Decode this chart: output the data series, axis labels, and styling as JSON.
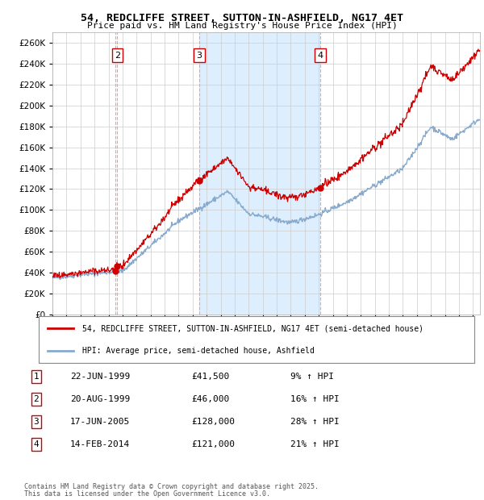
{
  "title": "54, REDCLIFFE STREET, SUTTON-IN-ASHFIELD, NG17 4ET",
  "subtitle": "Price paid vs. HM Land Registry's House Price Index (HPI)",
  "ylim": [
    0,
    270000
  ],
  "yticks": [
    0,
    20000,
    40000,
    60000,
    80000,
    100000,
    120000,
    140000,
    160000,
    180000,
    200000,
    220000,
    240000,
    260000
  ],
  "xlim_start": 1995.0,
  "xlim_end": 2025.5,
  "sale_dates_num": [
    1999.47,
    1999.63,
    2005.46,
    2014.12
  ],
  "sale_prices": [
    41500,
    46000,
    128000,
    121000
  ],
  "sale_labels": [
    "1",
    "2",
    "3",
    "4"
  ],
  "sale_info": [
    {
      "num": "1",
      "date": "22-JUN-1999",
      "price": "£41,500",
      "pct": "9% ↑ HPI"
    },
    {
      "num": "2",
      "date": "20-AUG-1999",
      "price": "£46,000",
      "pct": "16% ↑ HPI"
    },
    {
      "num": "3",
      "date": "17-JUN-2005",
      "price": "£128,000",
      "pct": "28% ↑ HPI"
    },
    {
      "num": "4",
      "date": "14-FEB-2014",
      "price": "£121,000",
      "pct": "21% ↑ HPI"
    }
  ],
  "legend_line1": "54, REDCLIFFE STREET, SUTTON-IN-ASHFIELD, NG17 4ET (semi-detached house)",
  "legend_line2": "HPI: Average price, semi-detached house, Ashfield",
  "footer1": "Contains HM Land Registry data © Crown copyright and database right 2025.",
  "footer2": "This data is licensed under the Open Government Licence v3.0.",
  "price_line_color": "#cc0000",
  "hpi_line_color": "#88aacc",
  "background_color": "#ffffff",
  "plot_bg_color": "#ffffff",
  "shade_color": "#ddeeff",
  "grid_color": "#cccccc",
  "vline_color": "#ff8888"
}
